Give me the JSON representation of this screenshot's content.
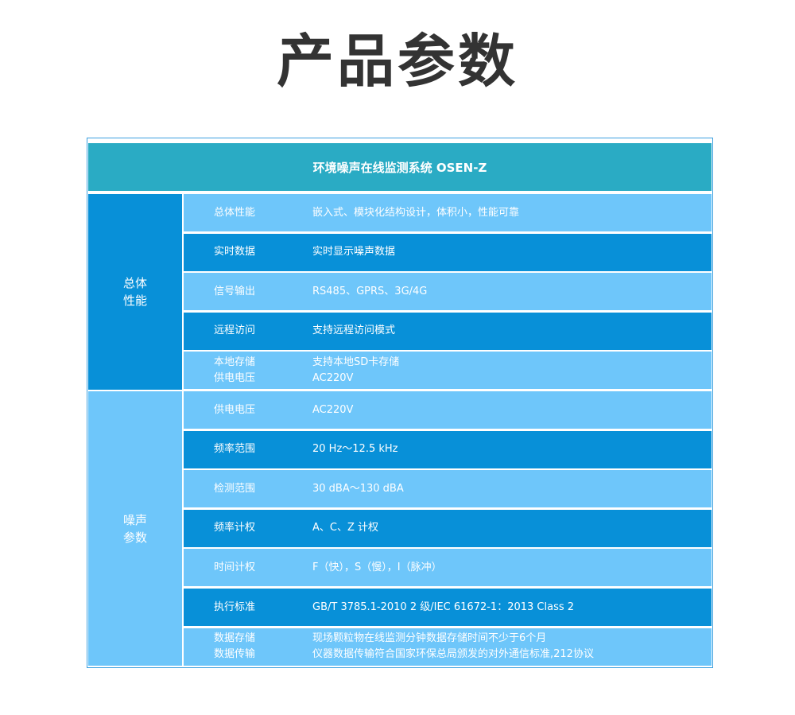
{
  "title": "产品参数",
  "table": {
    "header": "环境噪声在线监测系统 OSEN-Z",
    "groups": [
      {
        "label": "总体性能",
        "rows": [
          {
            "key": "总体性能",
            "value": "嵌入式、模块化结构设计，体积小，性能可靠"
          },
          {
            "key": "实时数据",
            "value": "实时显示噪声数据"
          },
          {
            "key": "信号输出",
            "value": "RS485、GPRS、3G/4G"
          },
          {
            "key": "远程访问",
            "value": "支持远程访问模式"
          },
          {
            "key": "本地存储\n供电电压",
            "value": "支持本地SD卡存储\n AC220V"
          }
        ]
      },
      {
        "label": "噪声参数",
        "rows": [
          {
            "key": "供电电压",
            "value": " AC220V"
          },
          {
            "key": "频率范围",
            "value": "  20 Hz～12.5 kHz"
          },
          {
            "key": "检测范围",
            "value": " 30 dBA～130 dBA"
          },
          {
            "key": "频率计权",
            "value": " A、C、Z 计权"
          },
          {
            "key": "时间计权",
            "value": " F（快），S（慢），I（脉冲）"
          },
          {
            "key": "执行标准",
            "value": " GB/T 3785.1-2010 2 级/IEC 61672-1：2013 Class 2"
          },
          {
            "key": "数据存储\n数据传输",
            "value": " 现场颗粒物在线监测分钟数据存储时间不少于6个月\n 仪器数据传输符合国家环保总局颁发的对外通信标准,212协议"
          }
        ]
      }
    ]
  },
  "colors": {
    "header": "#2aabc4",
    "dark": "#0890d8",
    "light": "#6ec6fa",
    "title": "#333333"
  }
}
